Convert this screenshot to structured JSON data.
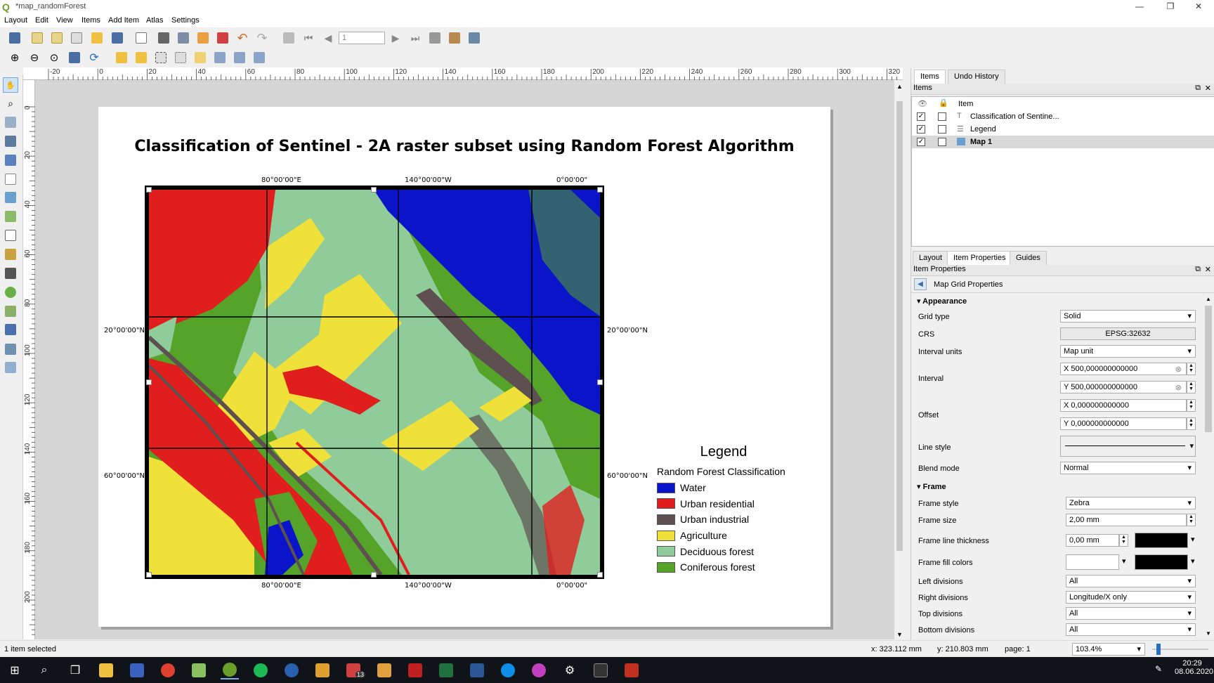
{
  "window": {
    "title": "*map_randomForest"
  },
  "menu": [
    "Layout",
    "Edit",
    "View",
    "Items",
    "Add Item",
    "Atlas",
    "Settings"
  ],
  "toolbar": {
    "page_number": "1"
  },
  "ruler": {
    "h_labels": [
      "-20",
      "0",
      "20",
      "40",
      "60",
      "80",
      "100",
      "120",
      "140",
      "160",
      "180",
      "200",
      "220",
      "240",
      "260",
      "280",
      "300",
      "320"
    ],
    "v_labels": [
      "0",
      "20",
      "40",
      "60",
      "80",
      "100",
      "120",
      "140",
      "160",
      "180",
      "200"
    ]
  },
  "layout": {
    "title": "Classification of Sentinel - 2A raster subset using Random Forest Algorithm",
    "grid_labels": {
      "top": [
        "80°00'00\"E",
        "140°00'00\"W",
        "0°00'00\""
      ],
      "bottom": [
        "80°00'00\"E",
        "140°00'00\"W",
        "0°00'00\""
      ],
      "left": [
        "20°00'00\"N",
        "60°00'00\"N"
      ],
      "right": [
        "20°00'00\"N",
        "60°00'00\"N"
      ]
    },
    "legend": {
      "title": "Legend",
      "subtitle": "Random Forest Classification",
      "items": [
        {
          "label": "Water",
          "color": "#0a14c8"
        },
        {
          "label": "Urban residential",
          "color": "#e01e1e"
        },
        {
          "label": "Urban industrial",
          "color": "#5e5050"
        },
        {
          "label": "Agriculture",
          "color": "#f0e03a"
        },
        {
          "label": "Deciduous forest",
          "color": "#90cc9a"
        },
        {
          "label": "Coniferous forest",
          "color": "#56a32a"
        }
      ]
    }
  },
  "panel": {
    "top_tabs": [
      "Items",
      "Undo History"
    ],
    "items_title": "Items",
    "items_header": "Item",
    "items": [
      {
        "name": "Classification of Sentine...",
        "visible": true,
        "locked": false,
        "selected": false
      },
      {
        "name": "Legend",
        "visible": true,
        "locked": false,
        "selected": false
      },
      {
        "name": "Map 1",
        "visible": true,
        "locked": false,
        "selected": true
      }
    ],
    "bottom_tabs": [
      "Layout",
      "Item Properties",
      "Guides"
    ],
    "props_title": "Item Properties",
    "props_subtitle": "Map Grid Properties",
    "appearance": {
      "section": "Appearance",
      "grid_type_label": "Grid type",
      "grid_type": "Solid",
      "crs_label": "CRS",
      "crs": "EPSG:32632",
      "interval_units_label": "Interval units",
      "interval_units": "Map unit",
      "interval_label": "Interval",
      "interval_x": "X 500,000000000000",
      "interval_y": "Y 500,000000000000",
      "offset_label": "Offset",
      "offset_x": "X 0,000000000000",
      "offset_y": "Y 0,000000000000",
      "line_style_label": "Line style",
      "blend_mode_label": "Blend mode",
      "blend_mode": "Normal"
    },
    "frame": {
      "section": "Frame",
      "frame_style_label": "Frame style",
      "frame_style": "Zebra",
      "frame_size_label": "Frame size",
      "frame_size": "2,00 mm",
      "frame_line_thickness_label": "Frame line thickness",
      "frame_line_thickness": "0,00 mm",
      "frame_fill_colors_label": "Frame fill colors",
      "left_divisions_label": "Left divisions",
      "left_divisions": "All",
      "right_divisions_label": "Right divisions",
      "right_divisions": "Longitude/X only",
      "top_divisions_label": "Top divisions",
      "top_divisions": "All",
      "bottom_divisions_label": "Bottom divisions",
      "bottom_divisions": "All"
    }
  },
  "status": {
    "selection": "1 item selected",
    "x": "x: 323.112 mm",
    "y": "y: 210.803 mm",
    "page": "page: 1",
    "zoom": "103.4%"
  },
  "taskbar": {
    "time": "20:29",
    "date": "08.06.2020",
    "mail_badge": "13"
  }
}
